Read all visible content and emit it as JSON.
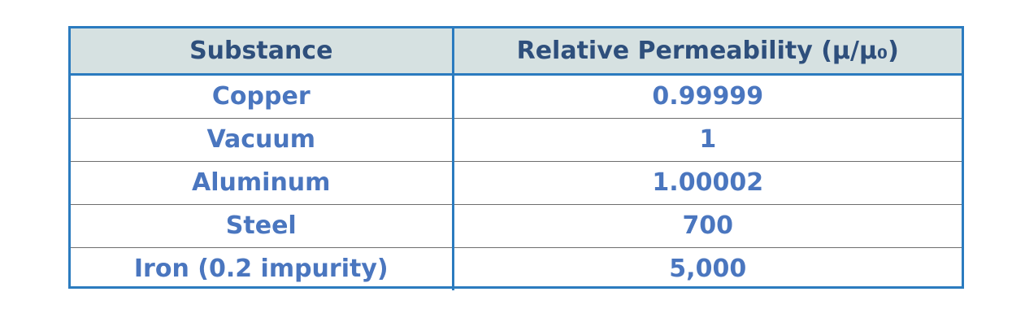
{
  "table": {
    "headers": [
      "Substance",
      "Relative Permeability (μ/μ₀)"
    ],
    "rows": [
      [
        "Copper",
        "0.99999"
      ],
      [
        "Vacuum",
        "1"
      ],
      [
        "Aluminum",
        "1.00002"
      ],
      [
        "Steel",
        "700"
      ],
      [
        "Iron (0.2 impurity)",
        "5,000"
      ]
    ]
  },
  "colors": {
    "border": "#2b7bbf",
    "header_bg": "#d6e1e1",
    "header_text": "#2e4f7c",
    "cell_text": "#4a76bf"
  }
}
